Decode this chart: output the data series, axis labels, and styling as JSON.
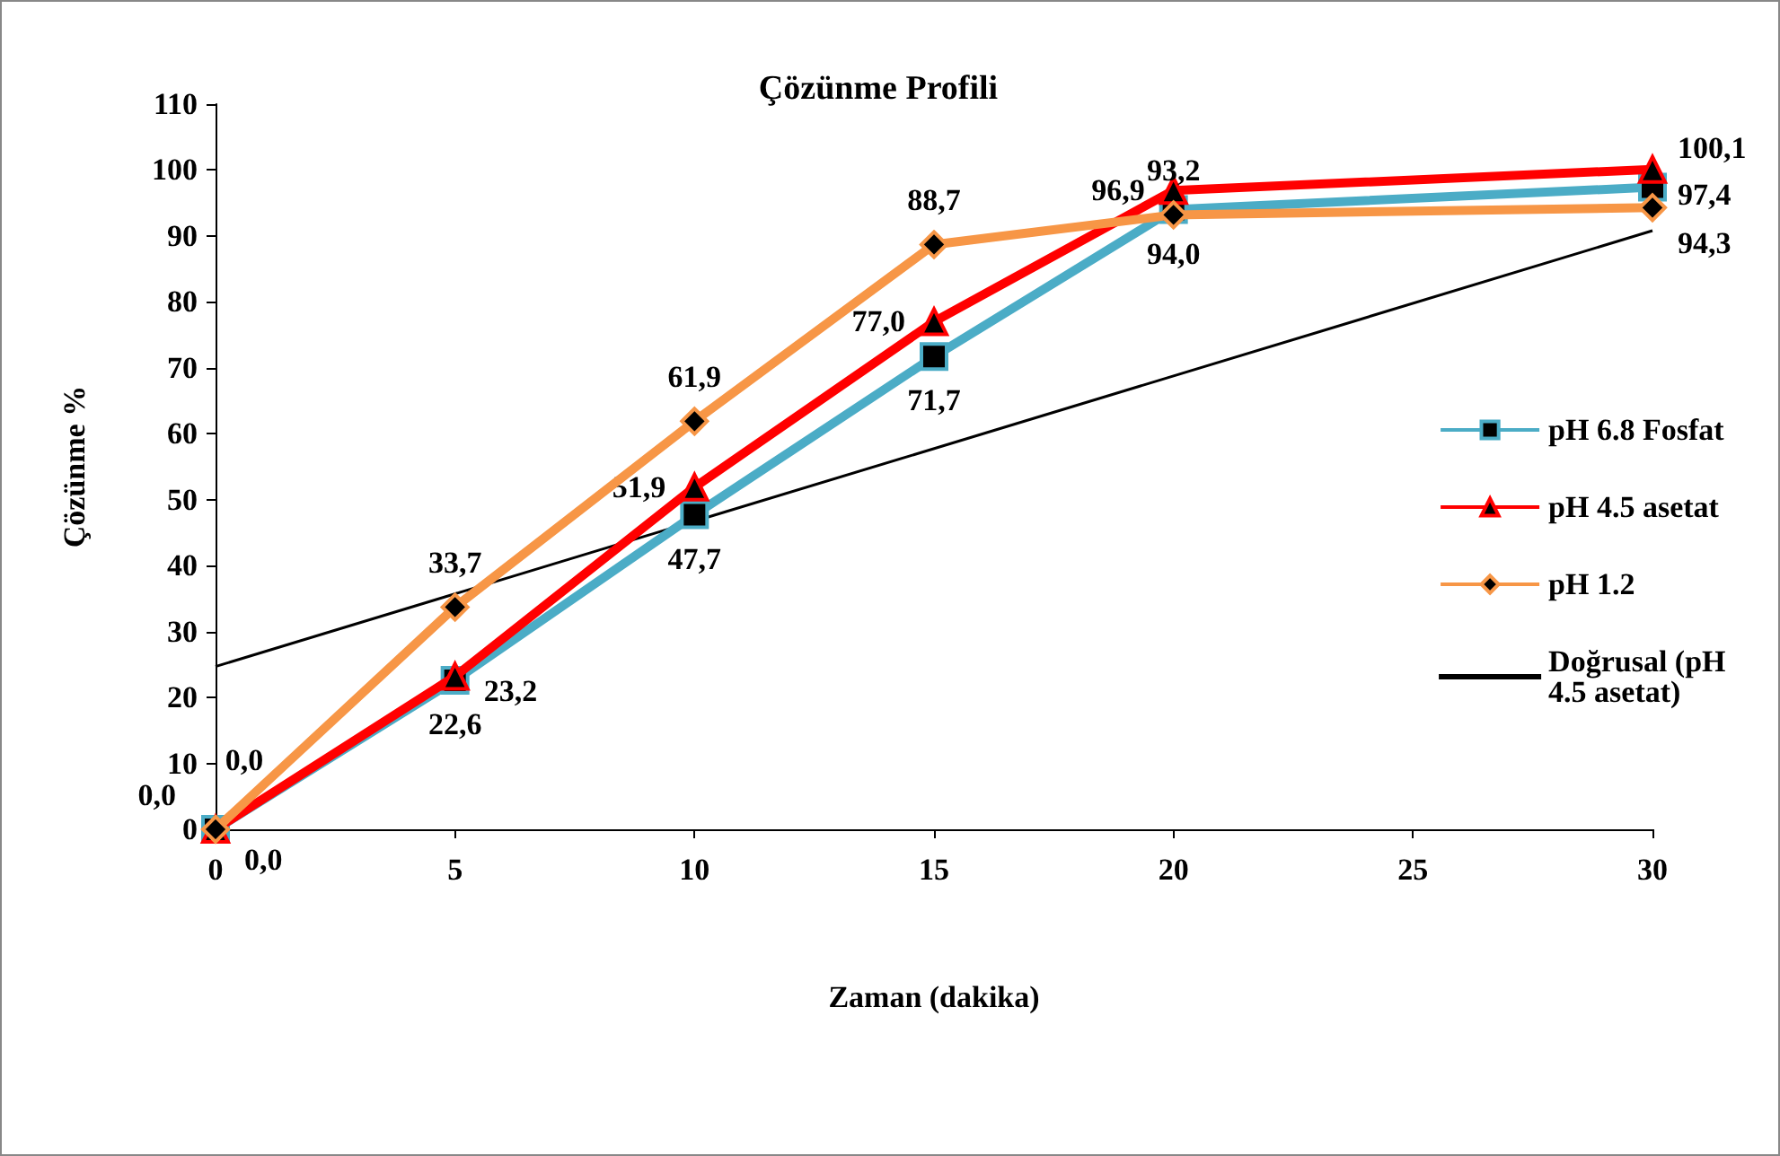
{
  "chart_data": {
    "type": "line",
    "title": "Çözünme Profili",
    "xlabel": "Zaman (dakika)",
    "ylabel": "Çözünme %",
    "x": [
      0,
      5,
      10,
      15,
      20,
      30
    ],
    "series": [
      {
        "name": "pH 6.8 Fosfat",
        "color": "#4bacc6",
        "marker": "square",
        "values": [
          0,
          22.6,
          47.7,
          71.7,
          94.0,
          97.4
        ],
        "value_labels": [
          "0,0",
          "22,6",
          "47,7",
          "71,7",
          "94,0",
          "97,4"
        ]
      },
      {
        "name": "pH 4.5 asetat",
        "color": "#ff0000",
        "marker": "triangle",
        "values": [
          0,
          23.2,
          51.9,
          77.0,
          96.9,
          100.1
        ],
        "value_labels": [
          "0,0",
          "23,2",
          "51,9",
          "77,0",
          "96,9",
          "100,1"
        ]
      },
      {
        "name": "pH 1.2",
        "color": "#f79646",
        "marker": "diamond",
        "values": [
          0,
          33.7,
          61.9,
          88.7,
          93.2,
          94.3
        ],
        "value_labels": [
          "0,0",
          "33,7",
          "61,9",
          "88,7",
          "93,2",
          "94,3"
        ]
      },
      {
        "name": "Doğrusal (pH 4.5 asetat)",
        "color": "#000000",
        "marker": "none",
        "x": [
          0,
          30
        ],
        "values": [
          24.7,
          90.8
        ]
      }
    ],
    "xlim": [
      0,
      30
    ],
    "xticks": [
      0,
      5,
      10,
      15,
      20,
      25,
      30
    ],
    "ylim": [
      0,
      110
    ],
    "yticks": [
      0,
      10,
      20,
      30,
      40,
      50,
      60,
      70,
      80,
      90,
      100,
      110
    ],
    "grid": false,
    "legend": "right"
  }
}
